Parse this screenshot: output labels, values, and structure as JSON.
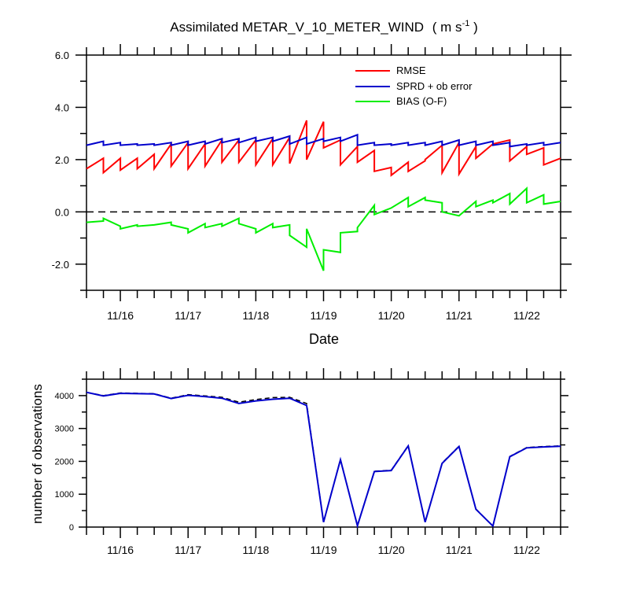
{
  "chart_data": [
    {
      "type": "line",
      "title": "Assimilated METAR_V_10_METER_WIND",
      "title_units": "( m s",
      "title_units_sup": "-1",
      "title_units_close": " )",
      "xlabel": "Date",
      "ylabel": "",
      "x_tick_labels": [
        "11/16",
        "11/17",
        "11/18",
        "11/19",
        "11/20",
        "11/21",
        "11/22"
      ],
      "y_tick_labels": [
        "6.0",
        "4.0",
        "2.0",
        "0.0",
        "-2.0"
      ],
      "ylim": [
        -3,
        6
      ],
      "xlim_days": [
        15.5,
        22.5
      ],
      "zero_line": "dashed",
      "legend_position": "top-right",
      "colors": {
        "rmse": "#ff0000",
        "sprd": "#0000cc",
        "bias": "#00ee00"
      },
      "series": [
        {
          "name": "RMSE",
          "key": "rmse",
          "points": [
            [
              15.5,
              1.65
            ],
            [
              15.75,
              2.05
            ],
            [
              15.75,
              1.5
            ],
            [
              16.0,
              2.05
            ],
            [
              16.0,
              1.6
            ],
            [
              16.25,
              2.05
            ],
            [
              16.25,
              1.65
            ],
            [
              16.5,
              2.2
            ],
            [
              16.5,
              1.65
            ],
            [
              16.75,
              2.6
            ],
            [
              16.75,
              1.75
            ],
            [
              17.0,
              2.65
            ],
            [
              17.0,
              1.65
            ],
            [
              17.25,
              2.6
            ],
            [
              17.25,
              1.75
            ],
            [
              17.5,
              2.75
            ],
            [
              17.5,
              1.9
            ],
            [
              17.75,
              2.75
            ],
            [
              17.75,
              1.9
            ],
            [
              18.0,
              2.75
            ],
            [
              18.0,
              1.8
            ],
            [
              18.25,
              2.8
            ],
            [
              18.25,
              1.8
            ],
            [
              18.5,
              2.85
            ],
            [
              18.5,
              1.85
            ],
            [
              18.75,
              3.5
            ],
            [
              18.75,
              2.0
            ],
            [
              19.0,
              3.45
            ],
            [
              19.0,
              2.45
            ],
            [
              19.25,
              2.75
            ],
            [
              19.25,
              1.8
            ],
            [
              19.5,
              2.5
            ],
            [
              19.5,
              1.9
            ],
            [
              19.75,
              2.35
            ],
            [
              19.75,
              1.55
            ],
            [
              20.0,
              1.7
            ],
            [
              20.0,
              1.4
            ],
            [
              20.25,
              1.9
            ],
            [
              20.25,
              1.55
            ],
            [
              20.5,
              1.95
            ],
            [
              20.5,
              2.0
            ],
            [
              20.75,
              2.55
            ],
            [
              20.75,
              1.5
            ],
            [
              21.0,
              2.65
            ],
            [
              21.0,
              1.45
            ],
            [
              21.25,
              2.5
            ],
            [
              21.25,
              2.05
            ],
            [
              21.5,
              2.6
            ],
            [
              21.5,
              2.6
            ],
            [
              21.75,
              2.75
            ],
            [
              21.75,
              1.95
            ],
            [
              22.0,
              2.5
            ],
            [
              22.0,
              2.2
            ],
            [
              22.25,
              2.45
            ],
            [
              22.25,
              1.8
            ],
            [
              22.5,
              2.05
            ]
          ]
        },
        {
          "name": "SPRD + ob error",
          "key": "sprd",
          "points": [
            [
              15.5,
              2.55
            ],
            [
              15.75,
              2.7
            ],
            [
              15.75,
              2.55
            ],
            [
              16.0,
              2.65
            ],
            [
              16.0,
              2.55
            ],
            [
              16.25,
              2.6
            ],
            [
              16.25,
              2.55
            ],
            [
              16.5,
              2.6
            ],
            [
              16.5,
              2.55
            ],
            [
              16.75,
              2.65
            ],
            [
              16.75,
              2.55
            ],
            [
              17.0,
              2.7
            ],
            [
              17.0,
              2.55
            ],
            [
              17.25,
              2.7
            ],
            [
              17.25,
              2.6
            ],
            [
              17.5,
              2.8
            ],
            [
              17.5,
              2.65
            ],
            [
              17.75,
              2.8
            ],
            [
              17.75,
              2.65
            ],
            [
              18.0,
              2.85
            ],
            [
              18.0,
              2.7
            ],
            [
              18.25,
              2.85
            ],
            [
              18.25,
              2.7
            ],
            [
              18.5,
              2.9
            ],
            [
              18.5,
              2.6
            ],
            [
              18.75,
              2.85
            ],
            [
              18.75,
              2.6
            ],
            [
              19.0,
              2.8
            ],
            [
              19.0,
              2.7
            ],
            [
              19.25,
              2.85
            ],
            [
              19.25,
              2.7
            ],
            [
              19.5,
              2.95
            ],
            [
              19.5,
              2.55
            ],
            [
              19.75,
              2.65
            ],
            [
              19.75,
              2.55
            ],
            [
              20.0,
              2.6
            ],
            [
              20.0,
              2.55
            ],
            [
              20.25,
              2.65
            ],
            [
              20.25,
              2.55
            ],
            [
              20.5,
              2.65
            ],
            [
              20.5,
              2.55
            ],
            [
              20.75,
              2.7
            ],
            [
              20.75,
              2.55
            ],
            [
              21.0,
              2.75
            ],
            [
              21.0,
              2.55
            ],
            [
              21.25,
              2.7
            ],
            [
              21.25,
              2.55
            ],
            [
              21.5,
              2.7
            ],
            [
              21.5,
              2.55
            ],
            [
              21.75,
              2.65
            ],
            [
              21.75,
              2.5
            ],
            [
              22.0,
              2.6
            ],
            [
              22.0,
              2.55
            ],
            [
              22.25,
              2.65
            ],
            [
              22.25,
              2.55
            ],
            [
              22.5,
              2.65
            ]
          ]
        },
        {
          "name": "BIAS (O-F)",
          "key": "bias",
          "points": [
            [
              15.5,
              -0.4
            ],
            [
              15.75,
              -0.35
            ],
            [
              15.75,
              -0.25
            ],
            [
              16.0,
              -0.55
            ],
            [
              16.0,
              -0.65
            ],
            [
              16.25,
              -0.5
            ],
            [
              16.25,
              -0.55
            ],
            [
              16.5,
              -0.5
            ],
            [
              16.5,
              -0.5
            ],
            [
              16.75,
              -0.4
            ],
            [
              16.75,
              -0.5
            ],
            [
              17.0,
              -0.65
            ],
            [
              17.0,
              -0.8
            ],
            [
              17.25,
              -0.45
            ],
            [
              17.25,
              -0.6
            ],
            [
              17.5,
              -0.45
            ],
            [
              17.5,
              -0.55
            ],
            [
              17.75,
              -0.25
            ],
            [
              17.75,
              -0.45
            ],
            [
              18.0,
              -0.65
            ],
            [
              18.0,
              -0.8
            ],
            [
              18.25,
              -0.45
            ],
            [
              18.25,
              -0.6
            ],
            [
              18.5,
              -0.5
            ],
            [
              18.5,
              -0.9
            ],
            [
              18.75,
              -1.35
            ],
            [
              18.75,
              -0.65
            ],
            [
              19.0,
              -2.25
            ],
            [
              19.0,
              -1.45
            ],
            [
              19.25,
              -1.55
            ],
            [
              19.25,
              -0.8
            ],
            [
              19.5,
              -0.75
            ],
            [
              19.5,
              -0.6
            ],
            [
              19.75,
              0.25
            ],
            [
              19.75,
              -0.1
            ],
            [
              20.0,
              0.15
            ],
            [
              20.0,
              0.15
            ],
            [
              20.25,
              0.55
            ],
            [
              20.25,
              0.2
            ],
            [
              20.5,
              0.55
            ],
            [
              20.5,
              0.45
            ],
            [
              20.75,
              0.35
            ],
            [
              20.75,
              0.0
            ],
            [
              21.0,
              -0.15
            ],
            [
              21.0,
              -0.15
            ],
            [
              21.25,
              0.4
            ],
            [
              21.25,
              0.2
            ],
            [
              21.5,
              0.45
            ],
            [
              21.5,
              0.35
            ],
            [
              21.75,
              0.7
            ],
            [
              21.75,
              0.3
            ],
            [
              22.0,
              0.9
            ],
            [
              22.0,
              0.35
            ],
            [
              22.25,
              0.65
            ],
            [
              22.25,
              0.3
            ],
            [
              22.5,
              0.4
            ]
          ]
        }
      ]
    },
    {
      "type": "line",
      "title": "",
      "xlabel": "",
      "ylabel": "number of observations",
      "x_tick_labels": [
        "11/16",
        "11/17",
        "11/18",
        "11/19",
        "11/20",
        "11/21",
        "11/22"
      ],
      "y_tick_labels": [
        "4000",
        "3000",
        "2000",
        "1000",
        "0"
      ],
      "ylim": [
        0,
        4500
      ],
      "xlim_days": [
        15.5,
        22.5
      ],
      "colors": {
        "used": "#0000cc",
        "possible": "#000000"
      },
      "series": [
        {
          "key": "possible",
          "style": "dashed",
          "x": [
            15.5,
            15.75,
            16.0,
            16.25,
            16.5,
            16.75,
            17.0,
            17.25,
            17.5,
            17.75,
            18.0,
            18.25,
            18.5,
            18.75,
            19.0,
            19.25,
            19.5,
            19.75,
            20.0,
            20.25,
            20.5,
            20.75,
            21.0,
            21.25,
            21.5,
            21.75,
            22.0,
            22.25,
            22.5
          ],
          "values": [
            4100,
            4000,
            4080,
            4070,
            4060,
            3920,
            4030,
            3990,
            3950,
            3800,
            3880,
            3940,
            3950,
            3760,
            150,
            2060,
            40,
            1700,
            1730,
            2480,
            150,
            1950,
            2460,
            550,
            30,
            2150,
            2420,
            2450,
            2470
          ]
        },
        {
          "key": "used",
          "style": "solid",
          "x": [
            15.5,
            15.75,
            16.0,
            16.25,
            16.5,
            16.75,
            17.0,
            17.25,
            17.5,
            17.75,
            18.0,
            18.25,
            18.5,
            18.75,
            19.0,
            19.25,
            19.5,
            19.75,
            20.0,
            20.25,
            20.5,
            20.75,
            21.0,
            21.25,
            21.5,
            21.75,
            22.0,
            22.25,
            22.5
          ],
          "values": [
            4100,
            3990,
            4070,
            4060,
            4050,
            3910,
            4010,
            3970,
            3920,
            3760,
            3840,
            3890,
            3920,
            3700,
            150,
            2050,
            40,
            1690,
            1720,
            2470,
            150,
            1940,
            2450,
            540,
            30,
            2140,
            2410,
            2440,
            2460
          ]
        }
      ]
    }
  ]
}
